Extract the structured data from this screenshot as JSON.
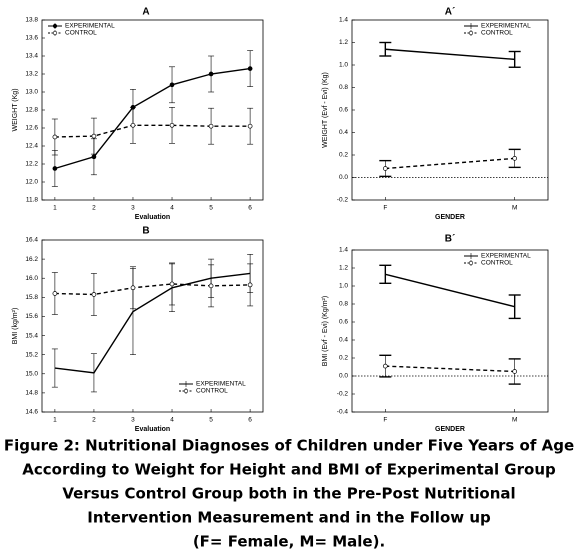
{
  "chart_data": [
    {
      "type": "line",
      "title": "A",
      "xlabel": "Evaluation",
      "ylabel": "WEIGHT (Kg)",
      "x": [
        1,
        2,
        3,
        4,
        5,
        6
      ],
      "xlim": [
        0.67,
        6.33
      ],
      "xticks": [
        1,
        2,
        3,
        4,
        5,
        6
      ],
      "ylim": [
        11.8,
        13.8
      ],
      "yticks": [
        11.8,
        {
          "value": 12.0,
          "label": "12.0"
        },
        12.2,
        12.4,
        12.6,
        12.8,
        {
          "value": 13.0,
          "label": "13.0"
        },
        13.2,
        13.4,
        13.6,
        13.8
      ],
      "legend": "upper left",
      "series": [
        {
          "name": "EXPERIMENTAL",
          "color": "#000000",
          "marker": "filled",
          "dashed": false,
          "values": [
            12.15,
            12.28,
            12.83,
            13.08,
            13.2,
            13.26
          ],
          "errors": [
            0.2,
            0.2,
            0.2,
            0.2,
            0.2,
            0.2
          ]
        },
        {
          "name": "CONTROL",
          "color": "#000000",
          "marker": "open",
          "dashed": true,
          "values": [
            12.5,
            12.51,
            12.63,
            12.63,
            12.62,
            12.62
          ],
          "errors": [
            0.2,
            0.2,
            0.2,
            0.2,
            0.2,
            0.2
          ]
        }
      ]
    },
    {
      "type": "line",
      "title": "A´",
      "xlabel": "GENDER",
      "ylabel": "WEIGHT (Evf - Evi) (Kg)",
      "categories": [
        "F",
        "M"
      ],
      "ylim": [
        -0.2,
        1.4
      ],
      "yticks": [
        -0.2,
        {
          "value": 0.0,
          "label": "0.0"
        },
        0.2,
        0.4,
        0.6,
        0.8,
        {
          "value": 1.0,
          "label": "1.0"
        },
        1.2,
        1.4
      ],
      "zero_line": true,
      "legend": "upper right",
      "series": [
        {
          "name": "EXPERIMENTAL",
          "color": "#000000",
          "marker": "none",
          "dashed": false,
          "values": [
            1.14,
            1.05
          ],
          "errors": [
            0.06,
            0.07
          ]
        },
        {
          "name": "CONTROL",
          "color": "#000000",
          "marker": "open",
          "dashed": true,
          "values": [
            0.08,
            0.17
          ],
          "errors": [
            0.07,
            0.08
          ]
        }
      ]
    },
    {
      "type": "line",
      "title": "B",
      "xlabel": "Evaluation",
      "ylabel": "BMI (kg/m²)",
      "x": [
        1,
        2,
        3,
        4,
        5,
        6
      ],
      "xlim": [
        0.67,
        6.33
      ],
      "xticks": [
        1,
        2,
        3,
        4,
        5,
        6
      ],
      "ylim": [
        14.6,
        16.4
      ],
      "yticks": [
        14.6,
        14.8,
        {
          "value": 15.0,
          "label": "15.0"
        },
        15.2,
        15.4,
        15.6,
        15.8,
        {
          "value": 16.0,
          "label": "16.0"
        },
        16.2,
        16.4
      ],
      "legend": "lower right",
      "series": [
        {
          "name": "EXPERIMENTAL",
          "color": "#000000",
          "marker": "none",
          "dashed": false,
          "values": [
            15.06,
            15.01,
            15.65,
            15.9,
            16.0,
            16.05
          ],
          "errors": [
            0.2,
            0.2,
            0.45,
            0.25,
            0.2,
            0.2
          ]
        },
        {
          "name": "CONTROL",
          "color": "#000000",
          "marker": "open",
          "dashed": true,
          "values": [
            15.84,
            15.83,
            15.9,
            15.94,
            15.92,
            15.93
          ],
          "errors": [
            0.22,
            0.22,
            0.22,
            0.22,
            0.22,
            0.22
          ]
        }
      ]
    },
    {
      "type": "line",
      "title": "B´",
      "xlabel": "GENDER",
      "ylabel": "BMI (Evf - Evi) (Kg/m²)",
      "categories": [
        "F",
        "M"
      ],
      "ylim": [
        -0.4,
        1.4
      ],
      "yticks": [
        -0.4,
        -0.2,
        {
          "value": 0.0,
          "label": "0.0"
        },
        0.2,
        0.4,
        0.6,
        0.8,
        {
          "value": 1.0,
          "label": "1.0"
        },
        1.2,
        1.4
      ],
      "zero_line": true,
      "legend": "upper right",
      "series": [
        {
          "name": "EXPERIMENTAL",
          "color": "#000000",
          "marker": "none",
          "dashed": false,
          "values": [
            1.13,
            0.77
          ],
          "errors": [
            0.1,
            0.13
          ]
        },
        {
          "name": "CONTROL",
          "color": "#000000",
          "marker": "open",
          "dashed": true,
          "values": [
            0.11,
            0.05
          ],
          "errors": [
            0.12,
            0.14
          ]
        }
      ]
    }
  ],
  "caption": [
    "Figure 2: Nutritional Diagnoses of Children under Five Years of Age",
    "According to Weight for Height and BMI of Experimental Group",
    "Versus Control Group both in the Pre-Post Nutritional",
    "Intervention Measurement and in the Follow up",
    "(F= Female, M= Male)."
  ]
}
